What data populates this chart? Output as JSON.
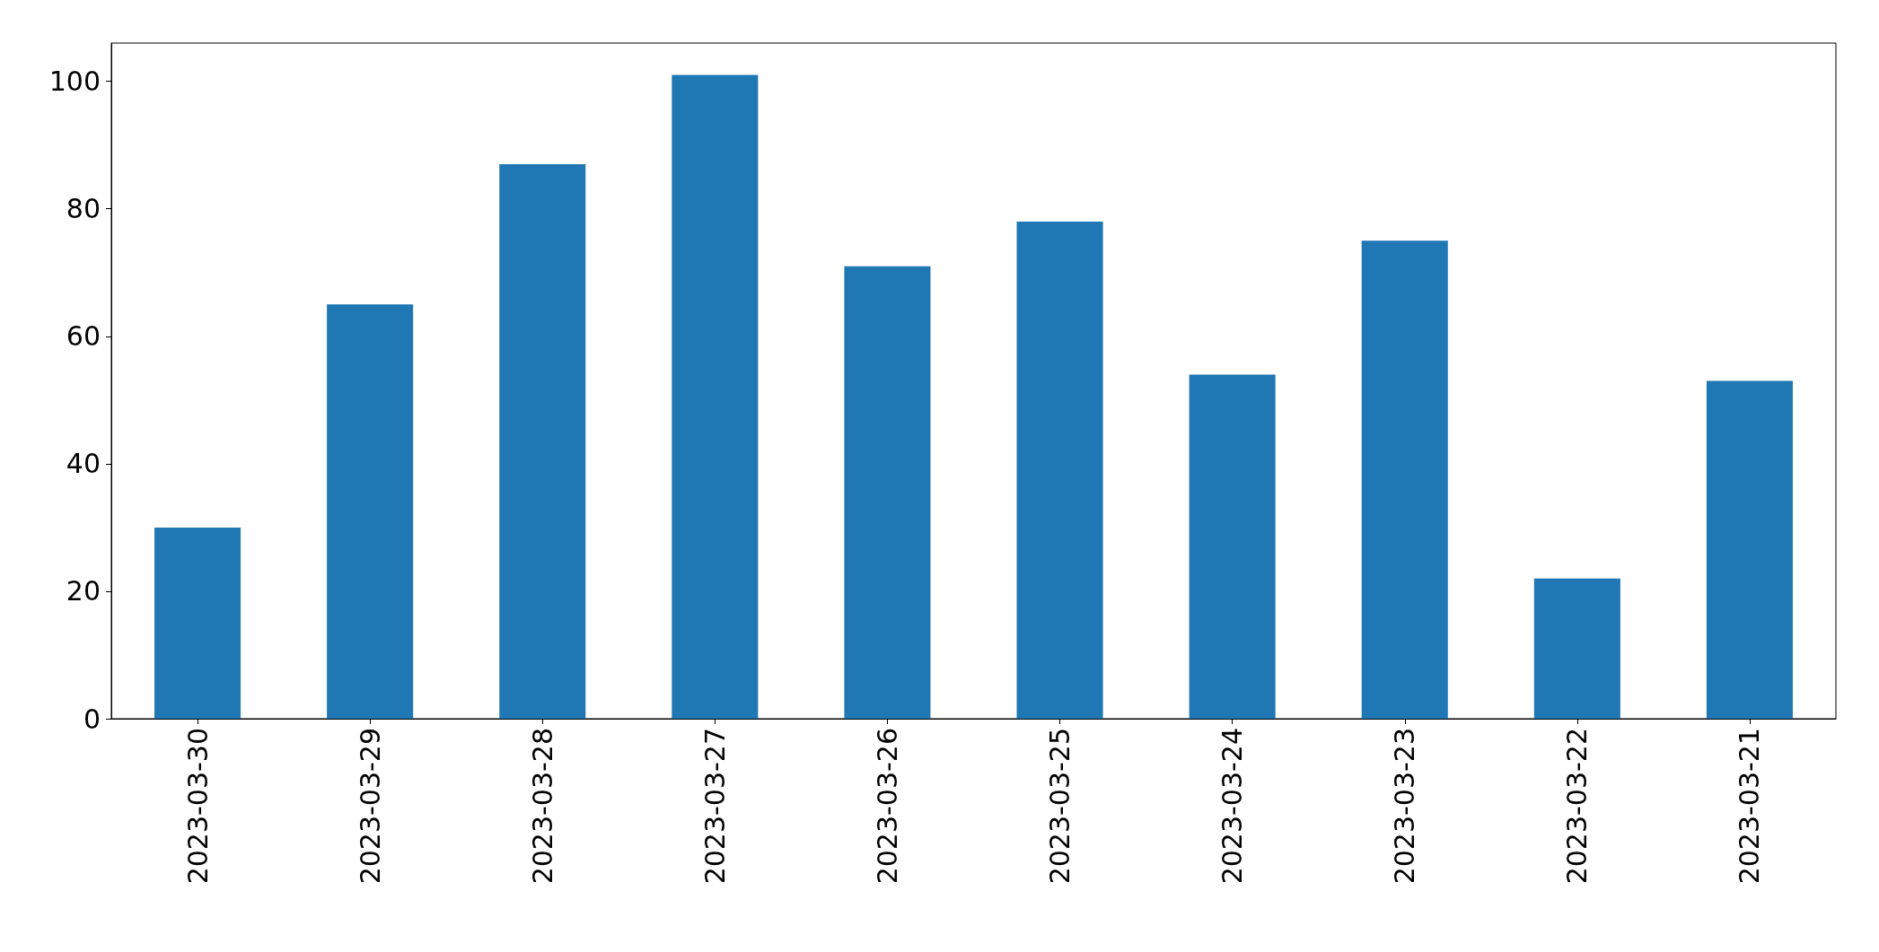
{
  "chart_data": {
    "type": "bar",
    "categories": [
      "2023-03-30",
      "2023-03-29",
      "2023-03-28",
      "2023-03-27",
      "2023-03-26",
      "2023-03-25",
      "2023-03-24",
      "2023-03-23",
      "2023-03-22",
      "2023-03-21"
    ],
    "values": [
      30,
      65,
      87,
      101,
      71,
      78,
      54,
      75,
      22,
      53
    ],
    "color": "#1f77b4",
    "ylim": [
      0,
      106
    ],
    "yticks": [
      0,
      20,
      40,
      60,
      80,
      100
    ]
  }
}
